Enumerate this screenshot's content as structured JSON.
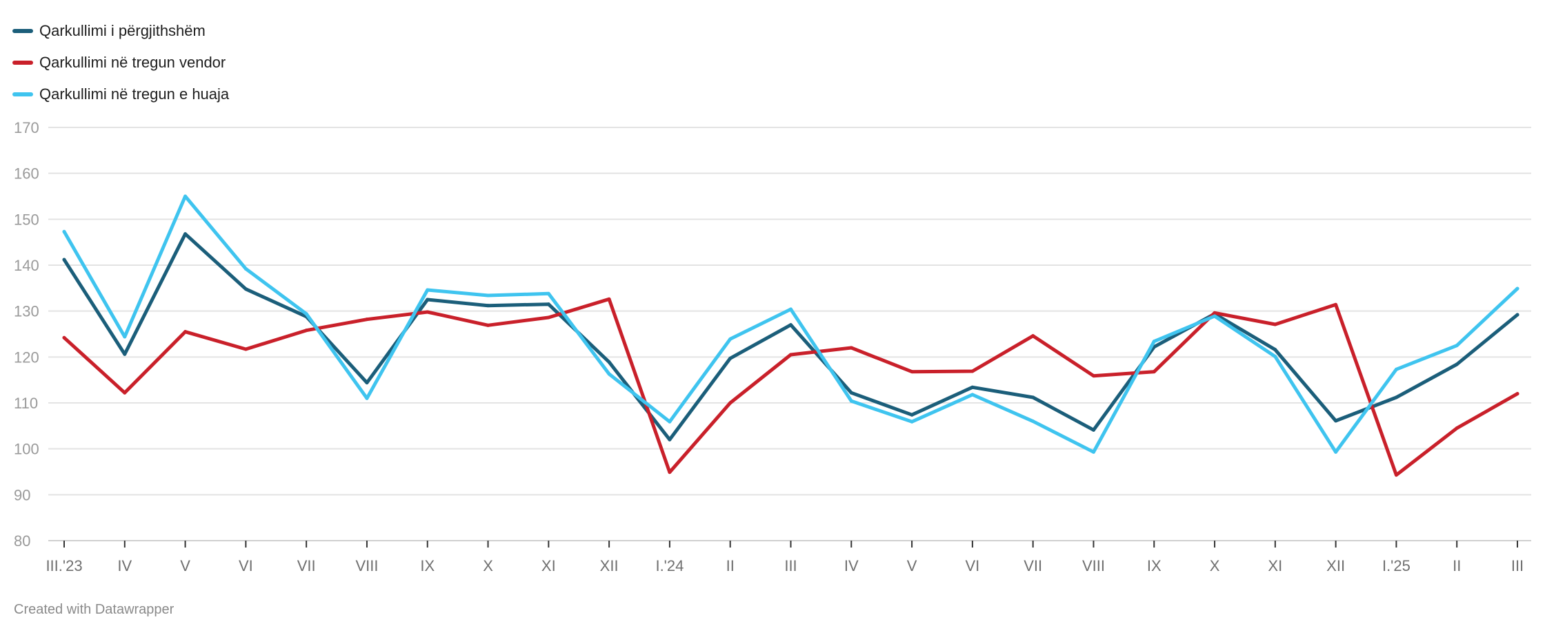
{
  "footer": {
    "credit": "Created with Datawrapper"
  },
  "chart_data": {
    "type": "line",
    "title": "",
    "xlabel": "",
    "ylabel": "",
    "ylim": [
      80,
      170
    ],
    "yticks": [
      80,
      90,
      100,
      110,
      120,
      130,
      140,
      150,
      160,
      170
    ],
    "grid": true,
    "legend_position": "top-left",
    "categories": [
      "III.'23",
      "IV",
      "V",
      "VI",
      "VII",
      "VIII",
      "IX",
      "X",
      "XI",
      "XII",
      "I.'24",
      "II",
      "III",
      "IV",
      "V",
      "VI",
      "VII",
      "VIII",
      "IX",
      "X",
      "XI",
      "XII",
      "I.'25",
      "II",
      "III"
    ],
    "series": [
      {
        "name": "Qarkullimi i përgjithshëm",
        "color": "#1b5e7a",
        "values": [
          141.2,
          120.6,
          146.8,
          134.8,
          128.8,
          114.4,
          132.5,
          131.2,
          131.5,
          118.9,
          102.0,
          119.7,
          127.0,
          112.2,
          107.4,
          113.4,
          111.2,
          104.1,
          122.2,
          129.4,
          121.6,
          106.1,
          111.2,
          118.4,
          129.2
        ]
      },
      {
        "name": "Qarkullimi në tregun vendor",
        "color": "#c9202a",
        "values": [
          124.2,
          112.2,
          125.5,
          121.7,
          125.8,
          128.2,
          129.8,
          126.9,
          128.6,
          132.6,
          94.9,
          110.0,
          120.5,
          122.0,
          116.8,
          116.9,
          124.6,
          115.9,
          116.8,
          129.6,
          127.1,
          131.4,
          94.3,
          104.5,
          112.0
        ]
      },
      {
        "name": "Qarkullimi në tregun e huaja",
        "color": "#3fc4ef",
        "values": [
          147.3,
          124.4,
          155.0,
          139.2,
          129.4,
          111.0,
          134.6,
          133.4,
          133.8,
          116.3,
          105.9,
          123.9,
          130.4,
          110.4,
          105.9,
          111.8,
          106.0,
          99.3,
          123.4,
          128.9,
          120.1,
          99.3,
          117.3,
          122.5,
          134.9
        ]
      }
    ]
  }
}
